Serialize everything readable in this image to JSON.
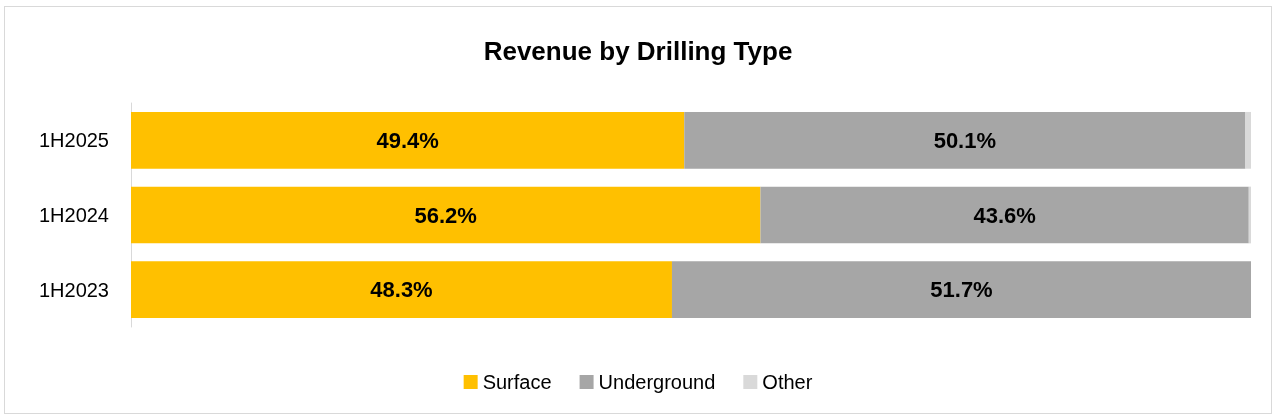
{
  "chart_data": {
    "type": "bar",
    "title": "Revenue by Drilling Type",
    "orientation": "horizontal",
    "stacked": true,
    "categories": [
      "1H2025",
      "1H2024",
      "1H2023"
    ],
    "series": [
      {
        "name": "Surface",
        "color": "#ffc000",
        "values": [
          49.4,
          56.2,
          48.3
        ],
        "value_labels": [
          "49.4%",
          "56.2%",
          "48.3%"
        ]
      },
      {
        "name": "Underground",
        "color": "#a6a6a6",
        "values": [
          50.1,
          43.6,
          51.7
        ],
        "value_labels": [
          "50.1%",
          "43.6%",
          "51.7%"
        ]
      },
      {
        "name": "Other",
        "color": "#d9d9d9",
        "values": [
          0.5,
          0.2,
          0
        ]
      }
    ],
    "xlim": [
      0,
      100
    ],
    "legend": "bottom",
    "grid": false
  }
}
